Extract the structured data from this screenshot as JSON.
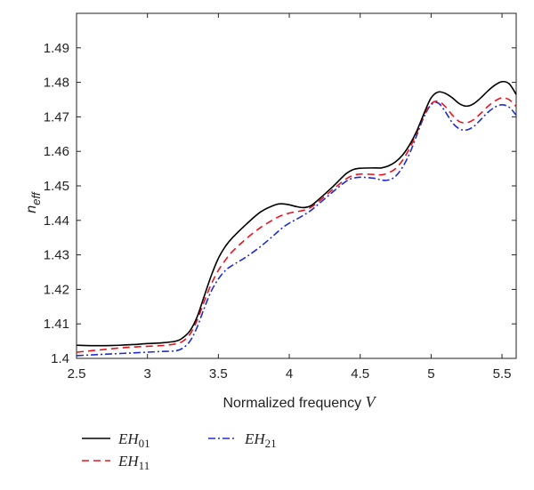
{
  "chart_data": {
    "type": "line",
    "title": "",
    "xlabel": "Normalized frequency ",
    "xlabel_var": "V",
    "ylabel": "n",
    "ylabel_sub": "eff",
    "xlim": [
      2.5,
      5.6
    ],
    "ylim": [
      1.4,
      1.5
    ],
    "xticks": [
      2.5,
      3,
      3.5,
      4,
      4.5,
      5,
      5.5
    ],
    "xtick_labels": [
      "2.5",
      "3",
      "3.5",
      "4",
      "4.5",
      "5",
      "5.5"
    ],
    "yticks": [
      1.4,
      1.41,
      1.42,
      1.43,
      1.44,
      1.45,
      1.46,
      1.47,
      1.48,
      1.49
    ],
    "ytick_labels": [
      "1.4",
      "1.41",
      "1.42",
      "1.43",
      "1.44",
      "1.45",
      "1.46",
      "1.47",
      "1.48",
      "1.49"
    ],
    "grid": false,
    "legend_position": "below-left",
    "series": [
      {
        "name": "EH01",
        "label_main": "EH",
        "label_sub": "01",
        "color": "#000000",
        "dash": "solid",
        "x": [
          2.5,
          2.6,
          2.7,
          2.8,
          2.9,
          3.0,
          3.1,
          3.2,
          3.25,
          3.3,
          3.35,
          3.4,
          3.45,
          3.5,
          3.55,
          3.6,
          3.7,
          3.8,
          3.9,
          3.95,
          4.0,
          4.05,
          4.1,
          4.15,
          4.2,
          4.3,
          4.4,
          4.45,
          4.5,
          4.6,
          4.65,
          4.7,
          4.75,
          4.8,
          4.85,
          4.9,
          4.95,
          5.0,
          5.05,
          5.1,
          5.15,
          5.2,
          5.25,
          5.3,
          5.35,
          5.4,
          5.45,
          5.5,
          5.55,
          5.6
        ],
        "y": [
          1.4038,
          1.4037,
          1.4037,
          1.4038,
          1.404,
          1.4043,
          1.4045,
          1.405,
          1.406,
          1.408,
          1.412,
          1.418,
          1.424,
          1.429,
          1.4325,
          1.435,
          1.439,
          1.4425,
          1.4445,
          1.4448,
          1.4445,
          1.444,
          1.4437,
          1.4442,
          1.4458,
          1.4495,
          1.4535,
          1.4547,
          1.4551,
          1.4552,
          1.4552,
          1.4558,
          1.457,
          1.459,
          1.462,
          1.466,
          1.471,
          1.4755,
          1.4772,
          1.4768,
          1.4755,
          1.4738,
          1.4731,
          1.4738,
          1.4755,
          1.4775,
          1.4792,
          1.4802,
          1.4796,
          1.4765
        ]
      },
      {
        "name": "EH11",
        "label_main": "EH",
        "label_sub": "11",
        "color": "#e8141c",
        "dash": "8,5",
        "x": [
          2.5,
          2.6,
          2.7,
          2.8,
          2.9,
          3.0,
          3.1,
          3.2,
          3.25,
          3.3,
          3.35,
          3.4,
          3.45,
          3.5,
          3.55,
          3.6,
          3.7,
          3.8,
          3.9,
          3.95,
          4.0,
          4.05,
          4.1,
          4.15,
          4.2,
          4.3,
          4.4,
          4.45,
          4.5,
          4.6,
          4.65,
          4.7,
          4.75,
          4.8,
          4.85,
          4.9,
          4.95,
          5.0,
          5.05,
          5.1,
          5.15,
          5.2,
          5.25,
          5.3,
          5.35,
          5.4,
          5.45,
          5.5,
          5.55,
          5.6
        ],
        "y": [
          1.4018,
          1.4022,
          1.4026,
          1.403,
          1.4033,
          1.4035,
          1.4037,
          1.4042,
          1.405,
          1.407,
          1.411,
          1.4165,
          1.4215,
          1.4255,
          1.4285,
          1.431,
          1.4348,
          1.438,
          1.4405,
          1.4415,
          1.4421,
          1.4425,
          1.4429,
          1.4437,
          1.4452,
          1.4487,
          1.452,
          1.453,
          1.4534,
          1.4533,
          1.4532,
          1.4538,
          1.455,
          1.4575,
          1.461,
          1.4655,
          1.4705,
          1.4738,
          1.4745,
          1.473,
          1.4705,
          1.4686,
          1.4683,
          1.4692,
          1.471,
          1.473,
          1.4746,
          1.4755,
          1.475,
          1.473
        ]
      },
      {
        "name": "EH21",
        "label_main": "EH",
        "label_sub": "21",
        "color": "#1f2bd6",
        "dash": "8,3,2,3",
        "x": [
          2.5,
          2.6,
          2.7,
          2.8,
          2.9,
          3.0,
          3.1,
          3.2,
          3.25,
          3.3,
          3.35,
          3.4,
          3.45,
          3.5,
          3.55,
          3.6,
          3.7,
          3.8,
          3.9,
          3.95,
          4.0,
          4.05,
          4.1,
          4.15,
          4.2,
          4.3,
          4.4,
          4.45,
          4.5,
          4.6,
          4.65,
          4.7,
          4.75,
          4.8,
          4.85,
          4.9,
          4.95,
          5.0,
          5.05,
          5.1,
          5.15,
          5.2,
          5.25,
          5.3,
          5.35,
          5.4,
          5.45,
          5.5,
          5.55,
          5.6
        ],
        "y": [
          1.4008,
          1.401,
          1.4012,
          1.4014,
          1.4016,
          1.4018,
          1.402,
          1.4022,
          1.403,
          1.405,
          1.409,
          1.4145,
          1.4195,
          1.423,
          1.4255,
          1.427,
          1.4295,
          1.4325,
          1.436,
          1.4378,
          1.4392,
          1.4403,
          1.4415,
          1.4428,
          1.4445,
          1.448,
          1.4513,
          1.4522,
          1.4525,
          1.4522,
          1.4517,
          1.4517,
          1.4528,
          1.4555,
          1.4595,
          1.4648,
          1.47,
          1.4735,
          1.474,
          1.4715,
          1.4683,
          1.4665,
          1.4662,
          1.4672,
          1.4692,
          1.4713,
          1.4728,
          1.4735,
          1.4728,
          1.4705
        ]
      }
    ]
  }
}
